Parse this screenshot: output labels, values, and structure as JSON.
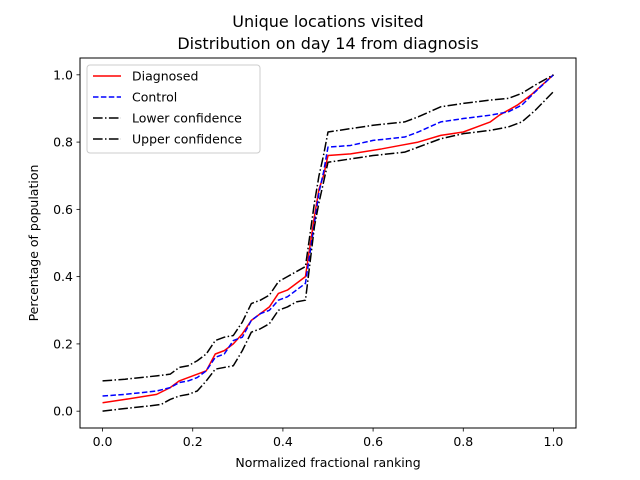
{
  "chart_data": {
    "type": "line",
    "title": "Unique locations visited",
    "subtitle": "Distribution on day 14 from diagnosis",
    "xlabel": "Normalized fractional ranking",
    "ylabel": "Percentage of population",
    "xlim": [
      -0.05,
      1.05
    ],
    "ylim": [
      -0.05,
      1.05
    ],
    "xticks": [
      "0.0",
      "0.2",
      "0.4",
      "0.6",
      "0.8",
      "1.0"
    ],
    "yticks": [
      "0.0",
      "0.2",
      "0.4",
      "0.6",
      "0.8",
      "1.0"
    ],
    "grid": false,
    "legend_position": "top-left",
    "series": [
      {
        "name": "Diagnosed",
        "color": "#ff0000",
        "dash": "solid",
        "x": [
          0.0,
          0.05,
          0.12,
          0.15,
          0.17,
          0.19,
          0.21,
          0.23,
          0.25,
          0.27,
          0.29,
          0.31,
          0.33,
          0.35,
          0.37,
          0.39,
          0.41,
          0.43,
          0.45,
          0.47,
          0.48,
          0.49,
          0.5,
          0.55,
          0.62,
          0.66,
          0.7,
          0.75,
          0.8,
          0.86,
          0.88,
          0.92,
          0.95,
          1.0
        ],
        "y": [
          0.025,
          0.035,
          0.05,
          0.07,
          0.09,
          0.1,
          0.11,
          0.12,
          0.17,
          0.18,
          0.2,
          0.23,
          0.27,
          0.29,
          0.31,
          0.35,
          0.36,
          0.38,
          0.4,
          0.58,
          0.66,
          0.7,
          0.76,
          0.765,
          0.78,
          0.79,
          0.8,
          0.82,
          0.83,
          0.86,
          0.88,
          0.91,
          0.94,
          1.0
        ]
      },
      {
        "name": "Control",
        "color": "#0000ff",
        "dash": "dashed",
        "x": [
          0.0,
          0.05,
          0.12,
          0.15,
          0.17,
          0.19,
          0.21,
          0.23,
          0.25,
          0.27,
          0.29,
          0.31,
          0.33,
          0.35,
          0.37,
          0.39,
          0.41,
          0.43,
          0.45,
          0.47,
          0.48,
          0.49,
          0.5,
          0.55,
          0.6,
          0.67,
          0.7,
          0.75,
          0.8,
          0.86,
          0.9,
          0.93,
          0.96,
          1.0
        ],
        "y": [
          0.045,
          0.05,
          0.06,
          0.07,
          0.085,
          0.09,
          0.1,
          0.12,
          0.16,
          0.17,
          0.21,
          0.22,
          0.27,
          0.29,
          0.3,
          0.33,
          0.34,
          0.36,
          0.38,
          0.56,
          0.65,
          0.71,
          0.785,
          0.79,
          0.805,
          0.815,
          0.83,
          0.86,
          0.87,
          0.88,
          0.89,
          0.91,
          0.95,
          1.0
        ]
      },
      {
        "name": "Lower confidence",
        "color": "#000000",
        "dash": "dashdot",
        "x": [
          0.0,
          0.05,
          0.1,
          0.13,
          0.15,
          0.17,
          0.19,
          0.21,
          0.23,
          0.25,
          0.27,
          0.29,
          0.31,
          0.33,
          0.35,
          0.37,
          0.39,
          0.41,
          0.43,
          0.45,
          0.47,
          0.48,
          0.49,
          0.5,
          0.55,
          0.6,
          0.67,
          0.7,
          0.75,
          0.8,
          0.86,
          0.9,
          0.93,
          0.96,
          1.0
        ],
        "y": [
          0.0,
          0.008,
          0.015,
          0.02,
          0.035,
          0.045,
          0.05,
          0.06,
          0.09,
          0.125,
          0.13,
          0.135,
          0.18,
          0.235,
          0.245,
          0.26,
          0.3,
          0.31,
          0.325,
          0.33,
          0.55,
          0.62,
          0.68,
          0.74,
          0.75,
          0.76,
          0.77,
          0.785,
          0.81,
          0.825,
          0.835,
          0.845,
          0.86,
          0.895,
          0.95
        ]
      },
      {
        "name": "Upper confidence",
        "color": "#000000",
        "dash": "dashdot",
        "x": [
          0.0,
          0.05,
          0.12,
          0.15,
          0.17,
          0.19,
          0.21,
          0.23,
          0.25,
          0.27,
          0.29,
          0.31,
          0.33,
          0.35,
          0.37,
          0.39,
          0.41,
          0.43,
          0.45,
          0.47,
          0.48,
          0.49,
          0.5,
          0.55,
          0.6,
          0.67,
          0.7,
          0.75,
          0.8,
          0.86,
          0.9,
          0.93,
          0.96,
          1.0
        ],
        "y": [
          0.09,
          0.095,
          0.105,
          0.11,
          0.13,
          0.135,
          0.15,
          0.17,
          0.21,
          0.22,
          0.225,
          0.265,
          0.32,
          0.33,
          0.345,
          0.385,
          0.4,
          0.415,
          0.43,
          0.62,
          0.7,
          0.76,
          0.83,
          0.84,
          0.85,
          0.86,
          0.875,
          0.905,
          0.915,
          0.925,
          0.93,
          0.945,
          0.97,
          1.0
        ]
      }
    ]
  }
}
